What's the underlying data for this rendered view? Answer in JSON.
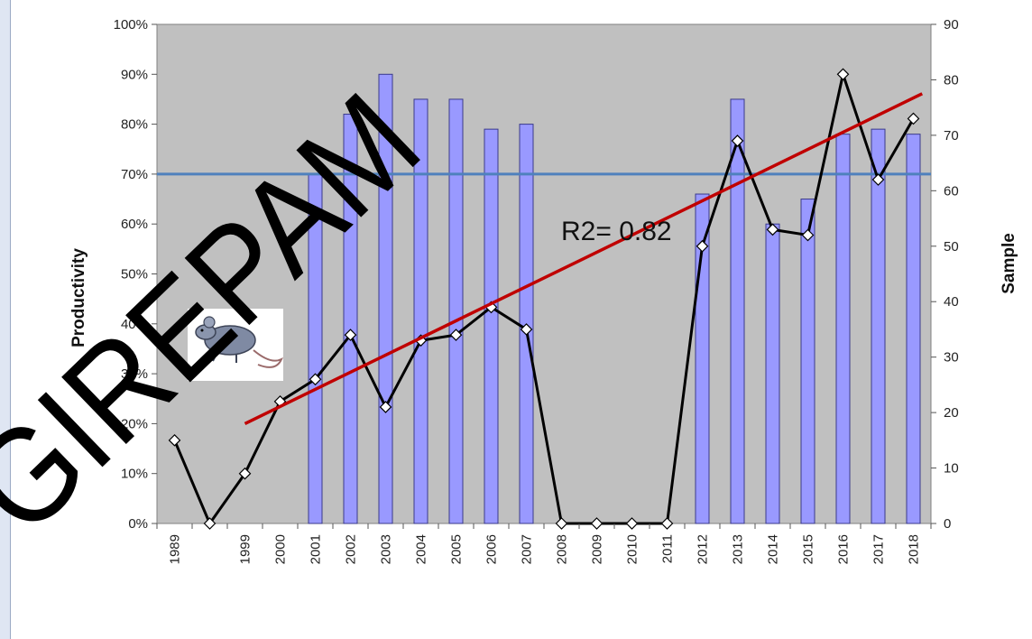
{
  "chart_data": {
    "type": "bar",
    "categories": [
      "1989",
      "",
      "1999",
      "2000",
      "2001",
      "2002",
      "2003",
      "2004",
      "2005",
      "2006",
      "2007",
      "2008",
      "2009",
      "2010",
      "2011",
      "2012",
      "2013",
      "2014",
      "2015",
      "2016",
      "2017",
      "2018"
    ],
    "series": [
      {
        "type": "bar",
        "axis": "left",
        "values": [
          null,
          null,
          null,
          null,
          0.7,
          0.82,
          0.9,
          0.85,
          0.85,
          0.79,
          0.8,
          null,
          null,
          null,
          null,
          0.66,
          0.85,
          0.6,
          0.65,
          0.78,
          0.79,
          0.78
        ],
        "color": "#9999ff"
      },
      {
        "type": "line",
        "axis": "right",
        "values": [
          15,
          0,
          9,
          22,
          26,
          34,
          21,
          33,
          34,
          39,
          35,
          0,
          0,
          0,
          0,
          50,
          69,
          53,
          52,
          81,
          62,
          73
        ],
        "color": "#000000"
      }
    ],
    "ylabel": "Productivity",
    "y2label": "Sample",
    "ylim": [
      0,
      1
    ],
    "y2lim": [
      0,
      90
    ],
    "yticks": [
      "0%",
      "10%",
      "20%",
      "30%",
      "40%",
      "50%",
      "60%",
      "70%",
      "80%",
      "90%",
      "100%"
    ],
    "y2ticks": [
      "0",
      "10",
      "20",
      "30",
      "40",
      "50",
      "60",
      "70",
      "80",
      "90"
    ],
    "reference_line": {
      "value": 0.7,
      "color": "#4f81bd"
    },
    "trendline": {
      "from_index": 2,
      "to_index": 21,
      "start": 18,
      "end": 76,
      "color": "#c00000"
    },
    "annotation": "R2= 0.82",
    "watermark": "GIREPAM",
    "plot_background": "#c0c0c0",
    "icon": "rat-icon"
  }
}
